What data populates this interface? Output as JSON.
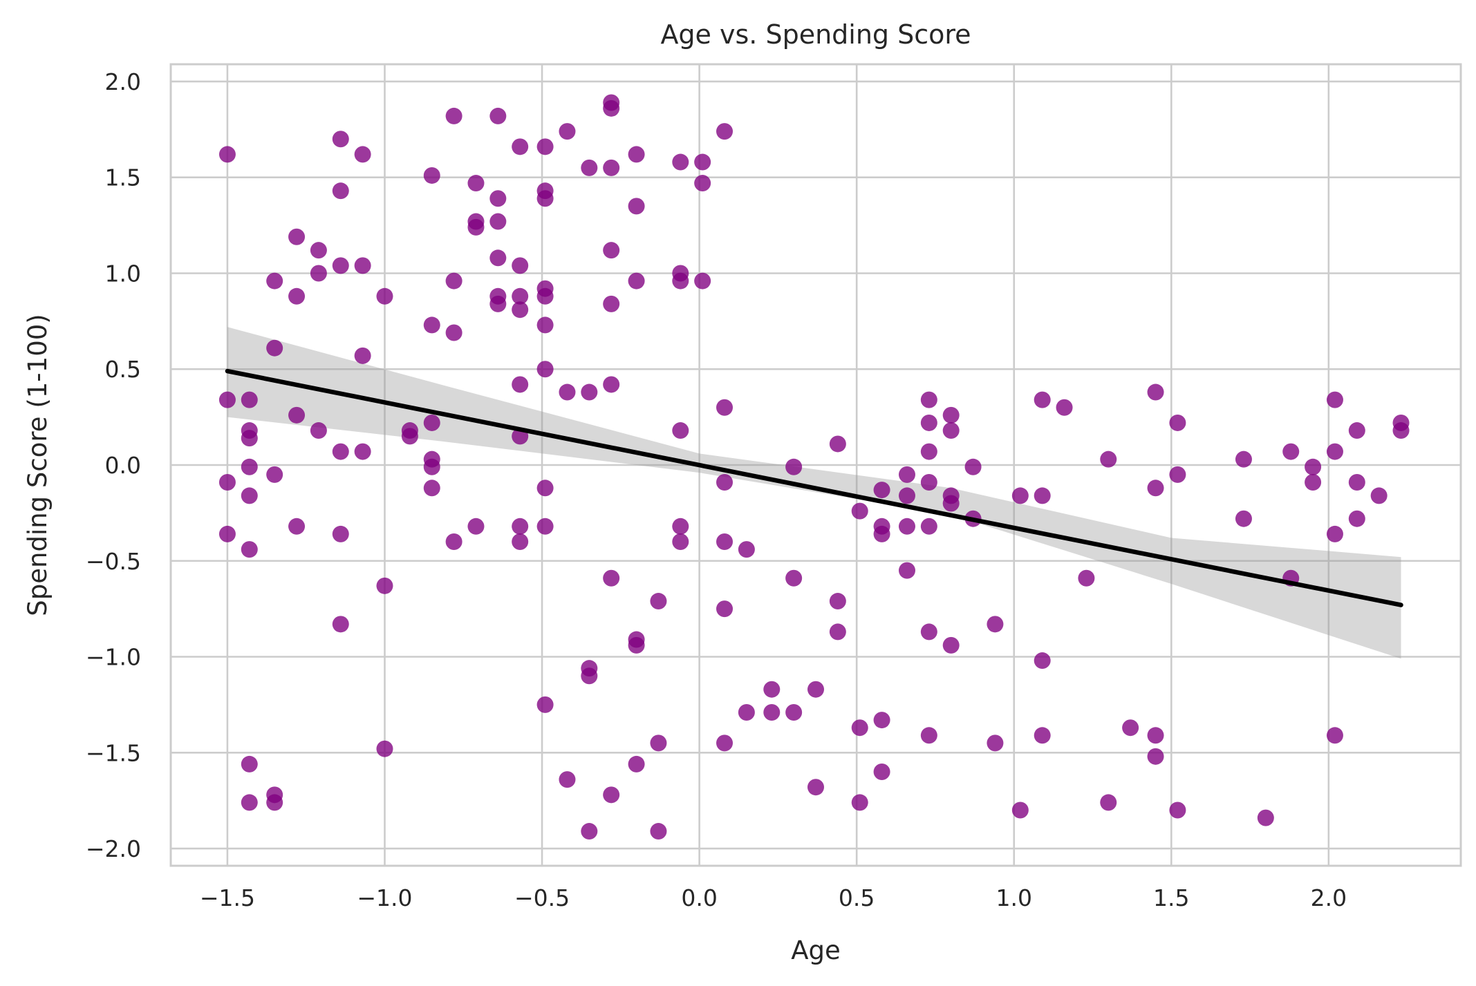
{
  "chart_data": {
    "type": "scatter",
    "title": "Age vs. Spending Score",
    "xlabel": "Age",
    "ylabel": "Spending Score (1-100)",
    "xlim": [
      -1.68,
      2.42
    ],
    "ylim": [
      -2.09,
      2.09
    ],
    "xticks": [
      -1.5,
      -1.0,
      -0.5,
      0.0,
      0.5,
      1.0,
      1.5,
      2.0
    ],
    "xtick_labels": [
      "−1.5",
      "−1.0",
      "−0.5",
      "0.0",
      "0.5",
      "1.0",
      "1.5",
      "2.0"
    ],
    "yticks": [
      -2.0,
      -1.5,
      -1.0,
      -0.5,
      0.0,
      0.5,
      1.0,
      1.5,
      2.0
    ],
    "ytick_labels": [
      "−2.0",
      "−1.5",
      "−1.0",
      "−0.5",
      "0.0",
      "0.5",
      "1.0",
      "1.5",
      "2.0"
    ],
    "grid": true,
    "point_color": "#800080",
    "line_color": "#000000",
    "band_color": "#999999",
    "points": [
      [
        -1.5,
        1.62
      ],
      [
        -1.5,
        0.34
      ],
      [
        -1.5,
        -0.09
      ],
      [
        -1.5,
        -0.36
      ],
      [
        -1.43,
        0.34
      ],
      [
        -1.43,
        0.18
      ],
      [
        -1.43,
        0.14
      ],
      [
        -1.43,
        -0.01
      ],
      [
        -1.43,
        -0.16
      ],
      [
        -1.43,
        -0.44
      ],
      [
        -1.43,
        -1.56
      ],
      [
        -1.43,
        -1.76
      ],
      [
        -1.35,
        0.96
      ],
      [
        -1.35,
        0.61
      ],
      [
        -1.35,
        -0.05
      ],
      [
        -1.35,
        -1.72
      ],
      [
        -1.35,
        -1.76
      ],
      [
        -1.28,
        1.19
      ],
      [
        -1.28,
        0.88
      ],
      [
        -1.28,
        0.26
      ],
      [
        -1.28,
        -0.32
      ],
      [
        -1.21,
        1.12
      ],
      [
        -1.21,
        1.0
      ],
      [
        -1.21,
        0.18
      ],
      [
        -1.14,
        1.7
      ],
      [
        -1.14,
        1.43
      ],
      [
        -1.14,
        1.04
      ],
      [
        -1.14,
        0.07
      ],
      [
        -1.14,
        -0.36
      ],
      [
        -1.14,
        -0.83
      ],
      [
        -1.07,
        1.62
      ],
      [
        -1.07,
        1.04
      ],
      [
        -1.07,
        0.57
      ],
      [
        -1.07,
        0.07
      ],
      [
        -1.0,
        0.88
      ],
      [
        -1.0,
        -0.63
      ],
      [
        -1.0,
        -1.48
      ],
      [
        -0.92,
        0.18
      ],
      [
        -0.92,
        0.15
      ],
      [
        -0.85,
        1.51
      ],
      [
        -0.85,
        0.73
      ],
      [
        -0.85,
        0.22
      ],
      [
        -0.85,
        0.03
      ],
      [
        -0.85,
        -0.01
      ],
      [
        -0.85,
        -0.12
      ],
      [
        -0.78,
        1.82
      ],
      [
        -0.78,
        0.96
      ],
      [
        -0.78,
        0.69
      ],
      [
        -0.78,
        -0.4
      ],
      [
        -0.71,
        1.47
      ],
      [
        -0.71,
        1.27
      ],
      [
        -0.71,
        1.24
      ],
      [
        -0.71,
        -0.32
      ],
      [
        -0.64,
        1.82
      ],
      [
        -0.64,
        1.39
      ],
      [
        -0.64,
        1.27
      ],
      [
        -0.64,
        1.08
      ],
      [
        -0.64,
        0.88
      ],
      [
        -0.64,
        0.84
      ],
      [
        -0.57,
        1.66
      ],
      [
        -0.57,
        1.04
      ],
      [
        -0.57,
        0.88
      ],
      [
        -0.57,
        0.81
      ],
      [
        -0.57,
        0.42
      ],
      [
        -0.57,
        0.15
      ],
      [
        -0.57,
        -0.32
      ],
      [
        -0.57,
        -0.4
      ],
      [
        -0.49,
        1.66
      ],
      [
        -0.49,
        1.43
      ],
      [
        -0.49,
        1.39
      ],
      [
        -0.49,
        0.92
      ],
      [
        -0.49,
        0.88
      ],
      [
        -0.49,
        0.73
      ],
      [
        -0.49,
        0.5
      ],
      [
        -0.49,
        -0.12
      ],
      [
        -0.49,
        -0.32
      ],
      [
        -0.49,
        -1.25
      ],
      [
        -0.42,
        1.74
      ],
      [
        -0.42,
        0.38
      ],
      [
        -0.42,
        -1.64
      ],
      [
        -0.35,
        1.55
      ],
      [
        -0.35,
        0.38
      ],
      [
        -0.35,
        -1.06
      ],
      [
        -0.35,
        -1.1
      ],
      [
        -0.35,
        -1.91
      ],
      [
        -0.28,
        1.89
      ],
      [
        -0.28,
        1.86
      ],
      [
        -0.28,
        1.55
      ],
      [
        -0.28,
        1.12
      ],
      [
        -0.28,
        0.84
      ],
      [
        -0.28,
        0.42
      ],
      [
        -0.28,
        -0.59
      ],
      [
        -0.28,
        -1.72
      ],
      [
        -0.2,
        1.62
      ],
      [
        -0.2,
        1.35
      ],
      [
        -0.2,
        0.96
      ],
      [
        -0.2,
        -0.91
      ],
      [
        -0.2,
        -0.94
      ],
      [
        -0.2,
        -1.56
      ],
      [
        -0.13,
        -0.71
      ],
      [
        -0.13,
        -1.45
      ],
      [
        -0.13,
        -1.91
      ],
      [
        -0.06,
        1.58
      ],
      [
        -0.06,
        1.0
      ],
      [
        -0.06,
        0.96
      ],
      [
        -0.06,
        0.18
      ],
      [
        -0.06,
        -0.32
      ],
      [
        -0.06,
        -0.4
      ],
      [
        0.01,
        1.58
      ],
      [
        0.01,
        1.47
      ],
      [
        0.01,
        0.96
      ],
      [
        0.08,
        1.74
      ],
      [
        0.08,
        0.3
      ],
      [
        0.08,
        -0.09
      ],
      [
        0.08,
        -0.4
      ],
      [
        0.08,
        -0.75
      ],
      [
        0.08,
        -1.45
      ],
      [
        0.15,
        -0.44
      ],
      [
        0.15,
        -1.29
      ],
      [
        0.23,
        -1.17
      ],
      [
        0.23,
        -1.29
      ],
      [
        0.3,
        -0.01
      ],
      [
        0.3,
        -0.59
      ],
      [
        0.3,
        -1.29
      ],
      [
        0.37,
        -1.17
      ],
      [
        0.37,
        -1.68
      ],
      [
        0.44,
        0.11
      ],
      [
        0.44,
        -0.71
      ],
      [
        0.44,
        -0.87
      ],
      [
        0.51,
        -0.24
      ],
      [
        0.51,
        -1.37
      ],
      [
        0.51,
        -1.76
      ],
      [
        0.58,
        -0.13
      ],
      [
        0.58,
        -0.32
      ],
      [
        0.58,
        -0.36
      ],
      [
        0.58,
        -1.33
      ],
      [
        0.58,
        -1.6
      ],
      [
        0.66,
        -0.05
      ],
      [
        0.66,
        -0.16
      ],
      [
        0.66,
        -0.32
      ],
      [
        0.66,
        -0.55
      ],
      [
        0.73,
        0.34
      ],
      [
        0.73,
        0.22
      ],
      [
        0.73,
        0.07
      ],
      [
        0.73,
        -0.09
      ],
      [
        0.73,
        -0.32
      ],
      [
        0.73,
        -0.87
      ],
      [
        0.73,
        -1.41
      ],
      [
        0.8,
        0.26
      ],
      [
        0.8,
        0.18
      ],
      [
        0.8,
        -0.16
      ],
      [
        0.8,
        -0.2
      ],
      [
        0.8,
        -0.94
      ],
      [
        0.87,
        -0.01
      ],
      [
        0.87,
        -0.28
      ],
      [
        0.94,
        -0.83
      ],
      [
        0.94,
        -1.45
      ],
      [
        1.02,
        -0.16
      ],
      [
        1.02,
        -1.8
      ],
      [
        1.09,
        0.34
      ],
      [
        1.09,
        -0.16
      ],
      [
        1.09,
        -1.02
      ],
      [
        1.09,
        -1.41
      ],
      [
        1.16,
        0.3
      ],
      [
        1.23,
        -0.59
      ],
      [
        1.3,
        0.03
      ],
      [
        1.3,
        -1.76
      ],
      [
        1.37,
        -1.37
      ],
      [
        1.45,
        0.38
      ],
      [
        1.45,
        -0.12
      ],
      [
        1.45,
        -1.41
      ],
      [
        1.45,
        -1.52
      ],
      [
        1.52,
        0.22
      ],
      [
        1.52,
        -0.05
      ],
      [
        1.52,
        -1.8
      ],
      [
        1.73,
        0.03
      ],
      [
        1.73,
        -0.28
      ],
      [
        1.8,
        -1.84
      ],
      [
        1.88,
        0.07
      ],
      [
        1.88,
        -0.59
      ],
      [
        1.95,
        -0.01
      ],
      [
        1.95,
        -0.09
      ],
      [
        2.02,
        0.34
      ],
      [
        2.02,
        0.07
      ],
      [
        2.02,
        -0.36
      ],
      [
        2.02,
        -1.41
      ],
      [
        2.09,
        0.18
      ],
      [
        2.09,
        -0.09
      ],
      [
        2.09,
        -0.28
      ],
      [
        2.16,
        -0.16
      ],
      [
        2.23,
        0.22
      ],
      [
        2.23,
        0.18
      ]
    ],
    "regression": {
      "x": [
        -1.5,
        2.23
      ],
      "y": [
        0.49,
        -0.73
      ]
    },
    "confidence_band": {
      "x": [
        -1.5,
        -0.8,
        0.0,
        0.8,
        1.5,
        2.23
      ],
      "upper": [
        0.72,
        0.41,
        0.06,
        -0.12,
        -0.38,
        -0.48
      ],
      "lower": [
        0.25,
        0.12,
        -0.04,
        -0.26,
        -0.62,
        -1.01
      ]
    }
  }
}
